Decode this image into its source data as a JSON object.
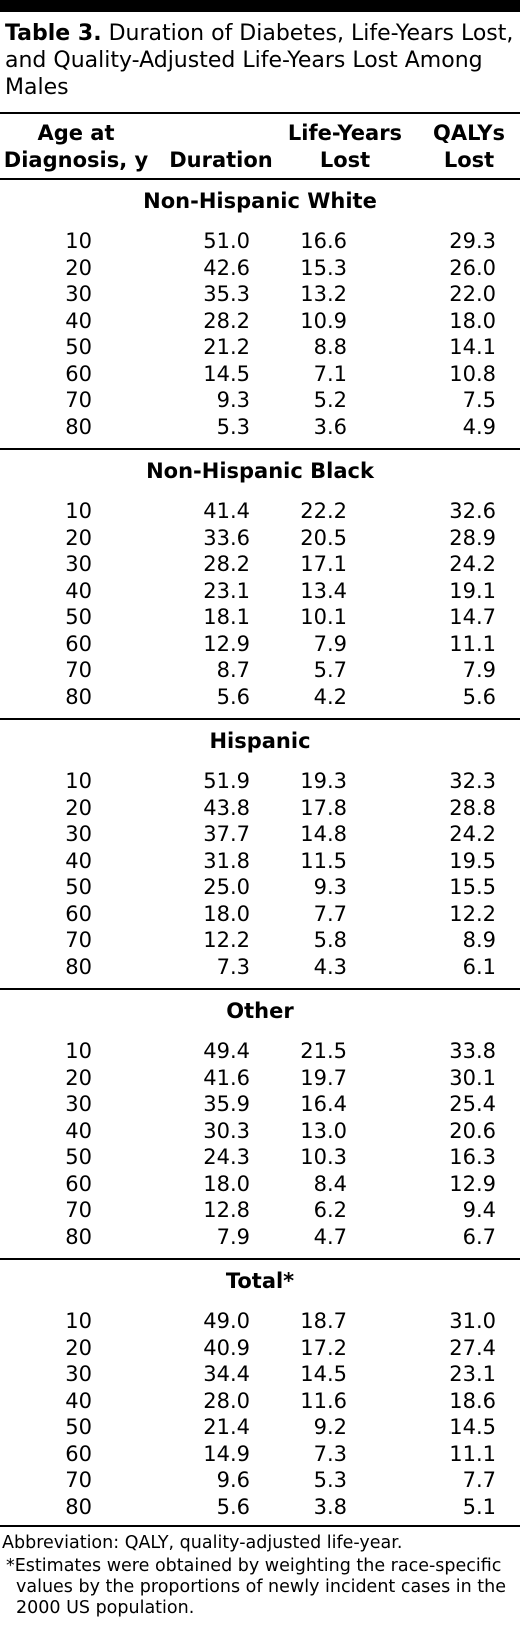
{
  "title": {
    "label": "Table 3.",
    "text": "Duration of Diabetes, Life-Years Lost, and Quality-Adjusted Life-Years Lost Among Males"
  },
  "headers": {
    "age": "Age at Diagnosis, y",
    "duration": "Duration",
    "life_years": "Life-Years Lost",
    "qalys": "QALYs Lost"
  },
  "sections": [
    {
      "name": "Non-Hispanic White",
      "rows": [
        [
          "10",
          "51.0",
          "16.6",
          "29.3"
        ],
        [
          "20",
          "42.6",
          "15.3",
          "26.0"
        ],
        [
          "30",
          "35.3",
          "13.2",
          "22.0"
        ],
        [
          "40",
          "28.2",
          "10.9",
          "18.0"
        ],
        [
          "50",
          "21.2",
          "8.8",
          "14.1"
        ],
        [
          "60",
          "14.5",
          "7.1",
          "10.8"
        ],
        [
          "70",
          "9.3",
          "5.2",
          "7.5"
        ],
        [
          "80",
          "5.3",
          "3.6",
          "4.9"
        ]
      ]
    },
    {
      "name": "Non-Hispanic Black",
      "rows": [
        [
          "10",
          "41.4",
          "22.2",
          "32.6"
        ],
        [
          "20",
          "33.6",
          "20.5",
          "28.9"
        ],
        [
          "30",
          "28.2",
          "17.1",
          "24.2"
        ],
        [
          "40",
          "23.1",
          "13.4",
          "19.1"
        ],
        [
          "50",
          "18.1",
          "10.1",
          "14.7"
        ],
        [
          "60",
          "12.9",
          "7.9",
          "11.1"
        ],
        [
          "70",
          "8.7",
          "5.7",
          "7.9"
        ],
        [
          "80",
          "5.6",
          "4.2",
          "5.6"
        ]
      ]
    },
    {
      "name": "Hispanic",
      "rows": [
        [
          "10",
          "51.9",
          "19.3",
          "32.3"
        ],
        [
          "20",
          "43.8",
          "17.8",
          "28.8"
        ],
        [
          "30",
          "37.7",
          "14.8",
          "24.2"
        ],
        [
          "40",
          "31.8",
          "11.5",
          "19.5"
        ],
        [
          "50",
          "25.0",
          "9.3",
          "15.5"
        ],
        [
          "60",
          "18.0",
          "7.7",
          "12.2"
        ],
        [
          "70",
          "12.2",
          "5.8",
          "8.9"
        ],
        [
          "80",
          "7.3",
          "4.3",
          "6.1"
        ]
      ]
    },
    {
      "name": "Other",
      "rows": [
        [
          "10",
          "49.4",
          "21.5",
          "33.8"
        ],
        [
          "20",
          "41.6",
          "19.7",
          "30.1"
        ],
        [
          "30",
          "35.9",
          "16.4",
          "25.4"
        ],
        [
          "40",
          "30.3",
          "13.0",
          "20.6"
        ],
        [
          "50",
          "24.3",
          "10.3",
          "16.3"
        ],
        [
          "60",
          "18.0",
          "8.4",
          "12.9"
        ],
        [
          "70",
          "12.8",
          "6.2",
          "9.4"
        ],
        [
          "80",
          "7.9",
          "4.7",
          "6.7"
        ]
      ]
    },
    {
      "name": "Total*",
      "rows": [
        [
          "10",
          "49.0",
          "18.7",
          "31.0"
        ],
        [
          "20",
          "40.9",
          "17.2",
          "27.4"
        ],
        [
          "30",
          "34.4",
          "14.5",
          "23.1"
        ],
        [
          "40",
          "28.0",
          "11.6",
          "18.6"
        ],
        [
          "50",
          "21.4",
          "9.2",
          "14.5"
        ],
        [
          "60",
          "14.9",
          "7.3",
          "11.1"
        ],
        [
          "70",
          "9.6",
          "5.3",
          "7.7"
        ],
        [
          "80",
          "5.6",
          "3.8",
          "5.1"
        ]
      ]
    }
  ],
  "footnotes": {
    "abbreviation": "Abbreviation: QALY, quality-adjusted life-year.",
    "note": "*Estimates were obtained by weighting the race-specific values by the proportions of newly incident cases in the 2000 US population."
  }
}
